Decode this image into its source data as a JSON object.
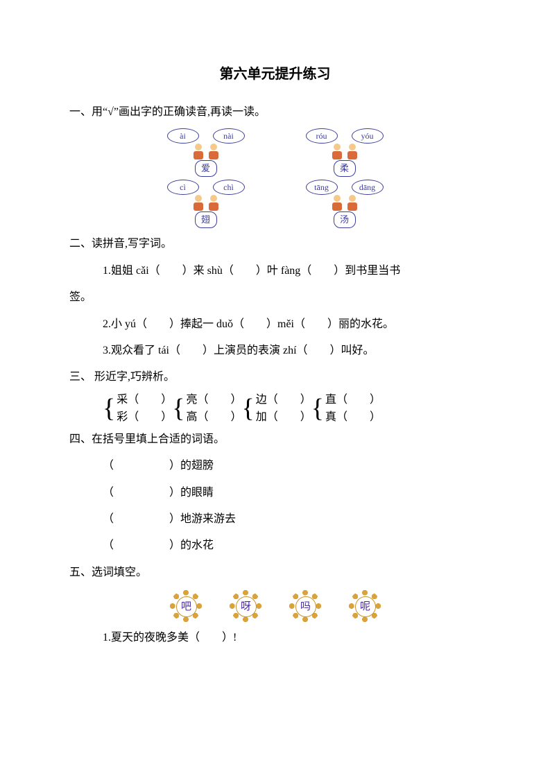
{
  "colors": {
    "text": "#000000",
    "bubble_border": "#3b3ba0",
    "bubble_text": "#3b3ba0",
    "flower_petal": "#d9a23a",
    "flower_text": "#4a2aa6",
    "doll_skin": "#f4c98a",
    "doll_body": "#d96b3a",
    "background": "#ffffff"
  },
  "title": "第六单元提升练习",
  "q1": {
    "heading": "一、用“√”画出字的正确读音,再读一读。",
    "items": [
      {
        "left": "ài",
        "right": "nài",
        "char": "爱"
      },
      {
        "left": "róu",
        "right": "yóu",
        "char": "柔"
      },
      {
        "left": "cì",
        "right": "chì",
        "char": "翅"
      },
      {
        "left": "tāng",
        "right": "dāng",
        "char": "汤"
      }
    ]
  },
  "q2": {
    "heading": "二、读拼音,写字词。",
    "lines": [
      "1.姐姐 cǎi（　　）来 shù（　　）叶 fàng（　　）到书里当书",
      "签。",
      "2.小 yú（　　）捧起一 duǒ（　　）měi（　　）丽的水花。",
      "3.观众看了 tái（　　）上演员的表演 zhí（　　）叫好。"
    ]
  },
  "q3": {
    "heading": "三、 形近字,巧辨析。",
    "groups": [
      {
        "top": "采（　　）",
        "bottom": "彩（　　）"
      },
      {
        "top": "亮（　　）",
        "bottom": "高（　　）"
      },
      {
        "top": "边（　　）",
        "bottom": "加（　　）"
      },
      {
        "top": "直（　　）",
        "bottom": "真（　　）"
      }
    ]
  },
  "q4": {
    "heading": "四、在括号里填上合适的词语。",
    "lines": [
      "（　　　　　）的翅膀",
      "（　　　　　）的眼睛",
      "（　　　　　）地游来游去",
      "（　　　　　）的水花"
    ]
  },
  "q5": {
    "heading": "五、选词填空。",
    "choices": [
      "吧",
      "呀",
      "吗",
      "呢"
    ],
    "lines": [
      "1.夏天的夜晚多美（　　）!"
    ]
  }
}
